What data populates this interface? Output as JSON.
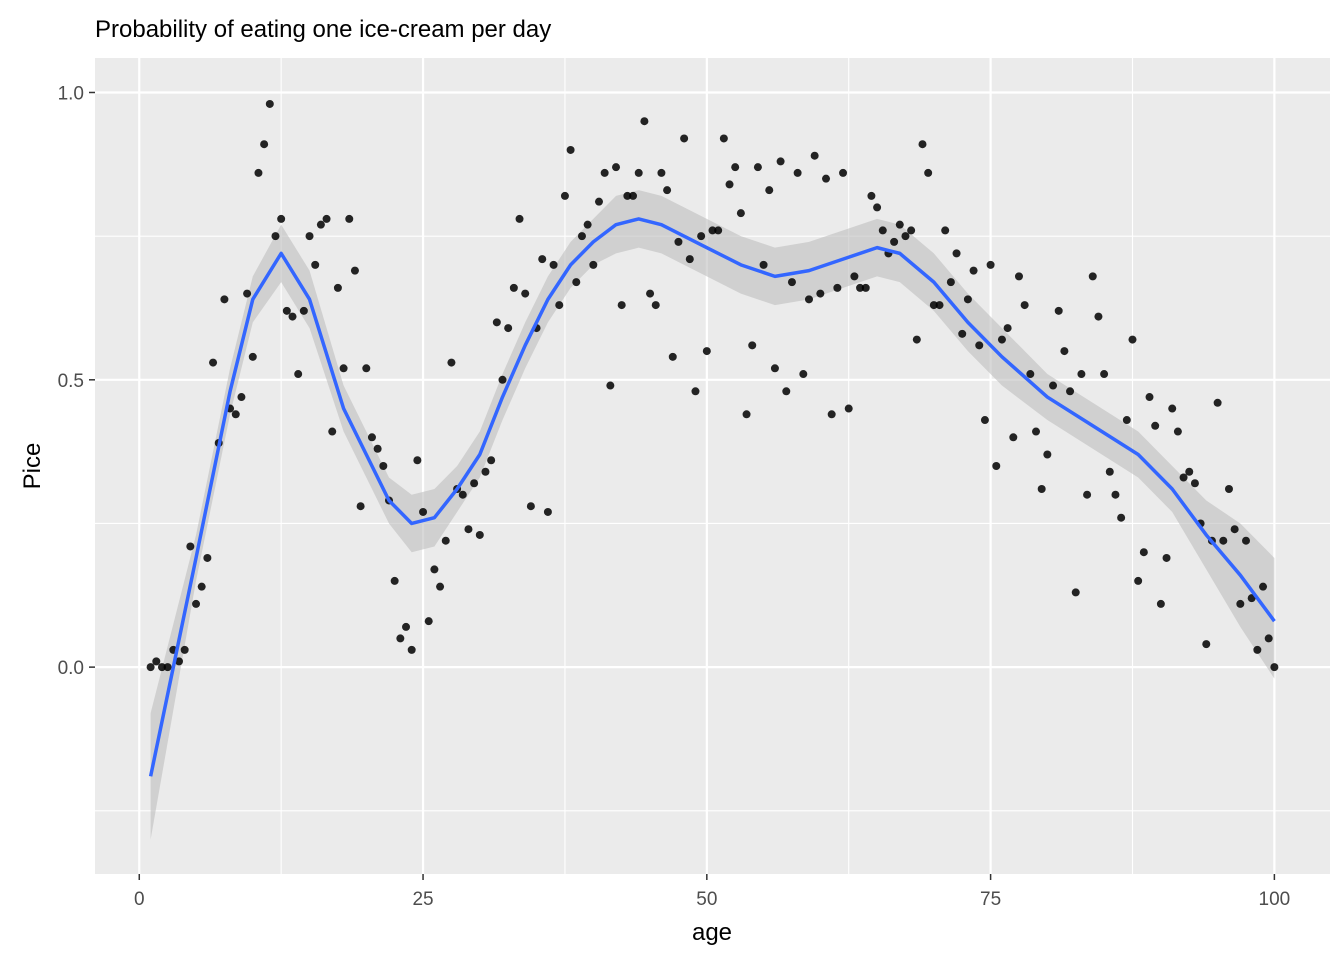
{
  "chart_data": {
    "type": "scatter",
    "title": "Probability of eating one ice-cream per day",
    "xlabel": "age",
    "ylabel": "Pice",
    "xlim": [
      -3.9,
      104.9
    ],
    "ylim": [
      -0.36,
      1.06
    ],
    "x_ticks": [
      0,
      25,
      50,
      75,
      100
    ],
    "x_tick_labels": [
      "0",
      "25",
      "50",
      "75",
      "100"
    ],
    "y_ticks": [
      0.0,
      0.5,
      1.0
    ],
    "y_tick_labels": [
      "0.0",
      "0.5",
      "1.0"
    ],
    "grid": true,
    "legend": "none",
    "colors": {
      "panel": "#ebebeb",
      "grid": "#ffffff",
      "points": "#000000",
      "smooth": "#3366ff",
      "ribbon": "#bebebe"
    },
    "series": [
      {
        "kind": "points",
        "x": [
          1,
          1.5,
          2,
          2.5,
          3,
          3.5,
          4,
          4.5,
          5,
          5.5,
          6,
          6.5,
          7,
          7.5,
          8,
          8.5,
          9,
          9.5,
          10,
          10.5,
          11,
          11.5,
          12,
          12.5,
          13,
          13.5,
          14,
          14.5,
          15,
          15.5,
          16,
          16.5,
          17,
          17.5,
          18,
          18.5,
          19,
          19.5,
          20,
          20.5,
          21,
          21.5,
          22,
          22.5,
          23,
          23.5,
          24,
          24.5,
          25,
          25.5,
          26,
          26.5,
          27,
          27.5,
          28,
          28.5,
          29,
          29.5,
          30,
          30.5,
          31,
          31.5,
          32,
          32.5,
          33,
          33.5,
          34,
          34.5,
          35,
          35.5,
          36,
          36.5,
          37,
          37.5,
          38,
          38.5,
          39,
          39.5,
          40,
          40.5,
          41,
          41.5,
          42,
          42.5,
          43,
          43.5,
          44,
          44.5,
          45,
          45.5,
          46,
          46.5,
          47,
          47.5,
          48,
          48.5,
          49,
          49.5,
          50,
          50.5,
          51,
          51.5,
          52,
          52.5,
          53,
          53.5,
          54,
          54.5,
          55,
          55.5,
          56,
          56.5,
          57,
          57.5,
          58,
          58.5,
          59,
          59.5,
          60,
          60.5,
          61,
          61.5,
          62,
          62.5,
          63,
          63.5,
          64,
          64.5,
          65,
          65.5,
          66,
          66.5,
          67,
          67.5,
          68,
          68.5,
          69,
          69.5,
          70,
          70.5,
          71,
          71.5,
          72,
          72.5,
          73,
          73.5,
          74,
          74.5,
          75,
          75.5,
          76,
          76.5,
          77,
          77.5,
          78,
          78.5,
          79,
          79.5,
          80,
          80.5,
          81,
          81.5,
          82,
          82.5,
          83,
          83.5,
          84,
          84.5,
          85,
          85.5,
          86,
          86.5,
          87,
          87.5,
          88,
          88.5,
          89,
          89.5,
          90,
          90.5,
          91,
          91.5,
          92,
          92.5,
          93,
          93.5,
          94,
          94.5,
          95,
          95.5,
          96,
          96.5,
          97,
          97.5,
          98,
          98.5,
          99,
          99.5,
          100
        ],
        "y": [
          0.0,
          0.01,
          0.0,
          0.0,
          0.03,
          0.01,
          0.03,
          0.21,
          0.11,
          0.14,
          0.19,
          0.53,
          0.39,
          0.64,
          0.45,
          0.44,
          0.47,
          0.65,
          0.54,
          0.86,
          0.91,
          0.98,
          0.75,
          0.78,
          0.62,
          0.61,
          0.51,
          0.62,
          0.75,
          0.7,
          0.77,
          0.78,
          0.41,
          0.66,
          0.52,
          0.78,
          0.69,
          0.28,
          0.52,
          0.4,
          0.38,
          0.35,
          0.29,
          0.15,
          0.05,
          0.07,
          0.03,
          0.36,
          0.27,
          0.08,
          0.17,
          0.14,
          0.22,
          0.53,
          0.31,
          0.3,
          0.24,
          0.32,
          0.23,
          0.34,
          0.36,
          0.6,
          0.5,
          0.59,
          0.66,
          0.78,
          0.65,
          0.28,
          0.59,
          0.71,
          0.27,
          0.7,
          0.63,
          0.82,
          0.9,
          0.67,
          0.75,
          0.77,
          0.7,
          0.81,
          0.86,
          0.49,
          0.87,
          0.63,
          0.82,
          0.82,
          0.86,
          0.95,
          0.65,
          0.63,
          0.86,
          0.83,
          0.54,
          0.74,
          0.92,
          0.71,
          0.48,
          0.75,
          0.55,
          0.76,
          0.76,
          0.92,
          0.84,
          0.87,
          0.79,
          0.44,
          0.56,
          0.87,
          0.7,
          0.83,
          0.52,
          0.88,
          0.48,
          0.67,
          0.86,
          0.51,
          0.64,
          0.89,
          0.65,
          0.85,
          0.44,
          0.66,
          0.86,
          0.45,
          0.68,
          0.66,
          0.66,
          0.82,
          0.8,
          0.76,
          0.72,
          0.74,
          0.77,
          0.75,
          0.76,
          0.57,
          0.91,
          0.86,
          0.63,
          0.63,
          0.76,
          0.67,
          0.72,
          0.58,
          0.64,
          0.69,
          0.56,
          0.43,
          0.7,
          0.35,
          0.57,
          0.59,
          0.4,
          0.68,
          0.63,
          0.51,
          0.41,
          0.31,
          0.37,
          0.49,
          0.62,
          0.55,
          0.48,
          0.13,
          0.51,
          0.3,
          0.68,
          0.61,
          0.51,
          0.34,
          0.3,
          0.26,
          0.43,
          0.57,
          0.15,
          0.2,
          0.47,
          0.42,
          0.11,
          0.19,
          0.45,
          0.41,
          0.33,
          0.34,
          0.32,
          0.25,
          0.04,
          0.22,
          0.46,
          0.22,
          0.31,
          0.24,
          0.11,
          0.22,
          0.12,
          0.03,
          0.14,
          0.05,
          0.0
        ]
      },
      {
        "kind": "smooth",
        "x": [
          1,
          5,
          8,
          10,
          12.5,
          15,
          18,
          20,
          22,
          24,
          26,
          28,
          30,
          32,
          34,
          36,
          38,
          40,
          42,
          44,
          46,
          48,
          50,
          53,
          56,
          59,
          62,
          65,
          67,
          70,
          73,
          76,
          80,
          84,
          88,
          91,
          94,
          97,
          100
        ],
        "y": [
          -0.19,
          0.19,
          0.48,
          0.64,
          0.72,
          0.64,
          0.45,
          0.37,
          0.29,
          0.25,
          0.26,
          0.31,
          0.37,
          0.47,
          0.56,
          0.64,
          0.7,
          0.74,
          0.77,
          0.78,
          0.77,
          0.75,
          0.73,
          0.7,
          0.68,
          0.69,
          0.71,
          0.73,
          0.72,
          0.67,
          0.6,
          0.54,
          0.47,
          0.42,
          0.37,
          0.31,
          0.23,
          0.16,
          0.08
        ],
        "lower": [
          -0.3,
          0.15,
          0.44,
          0.6,
          0.67,
          0.59,
          0.41,
          0.33,
          0.25,
          0.2,
          0.21,
          0.27,
          0.33,
          0.43,
          0.52,
          0.6,
          0.66,
          0.7,
          0.72,
          0.73,
          0.72,
          0.7,
          0.68,
          0.65,
          0.63,
          0.64,
          0.66,
          0.68,
          0.67,
          0.62,
          0.55,
          0.49,
          0.43,
          0.38,
          0.33,
          0.27,
          0.17,
          0.07,
          -0.02
        ],
        "upper": [
          -0.08,
          0.23,
          0.52,
          0.68,
          0.77,
          0.69,
          0.49,
          0.41,
          0.33,
          0.3,
          0.31,
          0.35,
          0.41,
          0.51,
          0.6,
          0.68,
          0.74,
          0.78,
          0.82,
          0.83,
          0.82,
          0.8,
          0.78,
          0.75,
          0.73,
          0.74,
          0.76,
          0.78,
          0.77,
          0.72,
          0.65,
          0.59,
          0.51,
          0.46,
          0.41,
          0.35,
          0.29,
          0.25,
          0.19
        ]
      }
    ]
  }
}
